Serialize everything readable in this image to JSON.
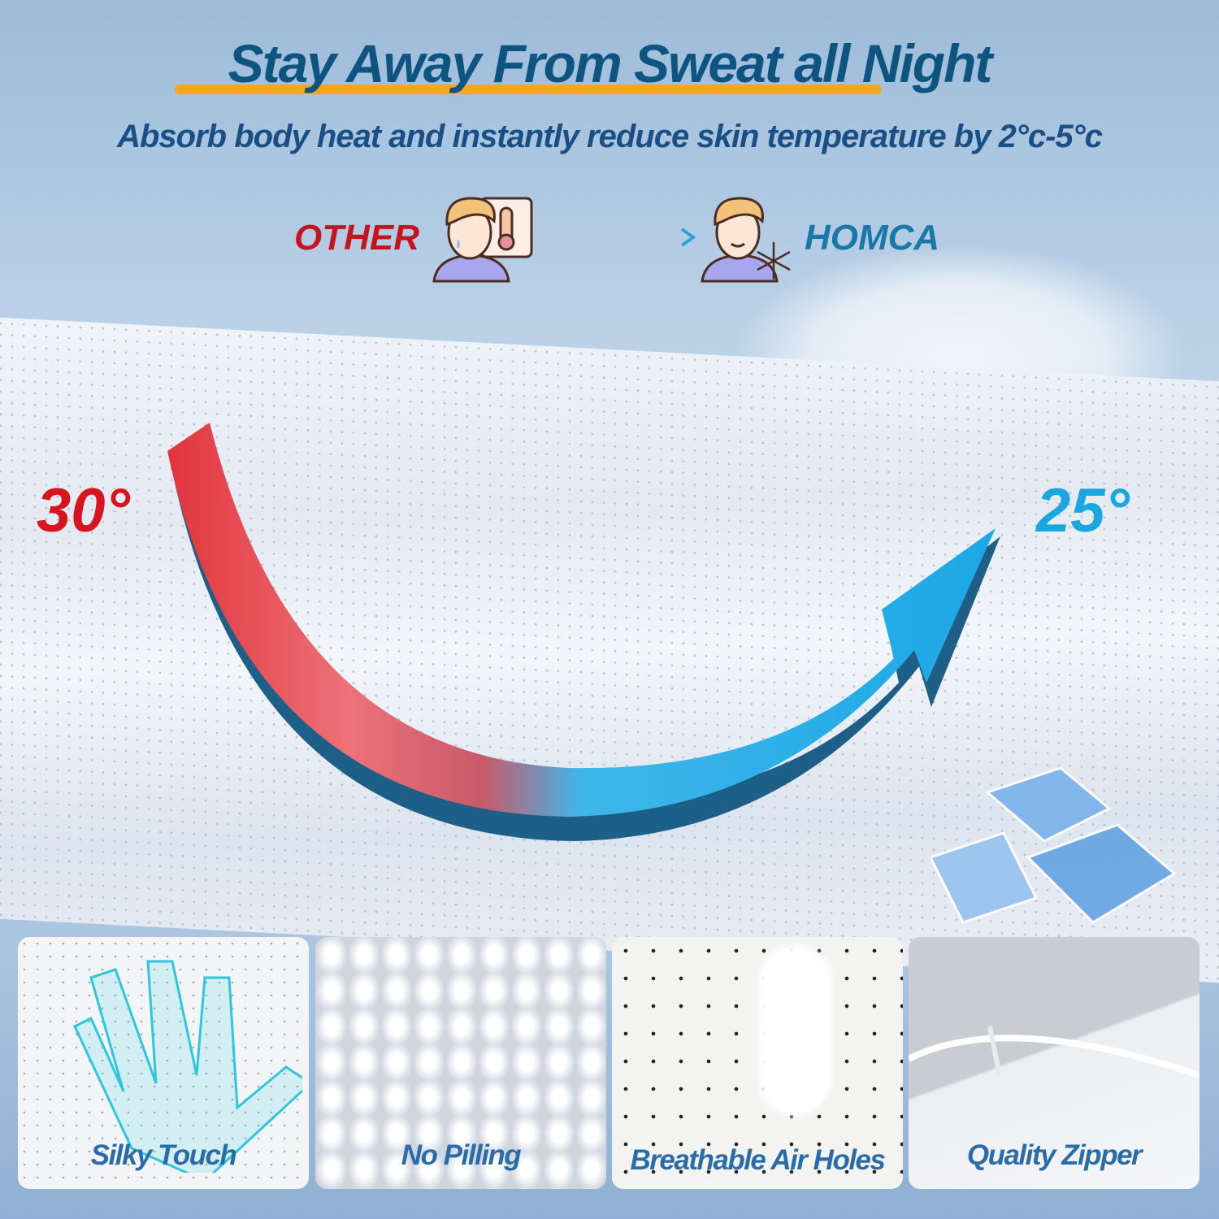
{
  "headline": {
    "title": "Stay Away From Sweat all Night",
    "subtitle": "Absorb body heat and instantly reduce skin temperature by 2°c-5°c"
  },
  "comparison": {
    "left_label": "OTHER",
    "right_label": "HOMCA",
    "left_icon": "hot-person-thermometer-icon",
    "right_icon": "cool-person-snowflake-icon",
    "arrow_icon": "arrow-right-icon"
  },
  "temperatures": {
    "before": "30°",
    "after": "25°"
  },
  "colors": {
    "title": "#0d5580",
    "accent_underline": "#f5a524",
    "hot": "#d8151f",
    "cool": "#1aa7e0",
    "feature_text": "#2a6ca8"
  },
  "features": [
    {
      "label": "Silky Touch"
    },
    {
      "label": "No Pilling"
    },
    {
      "label": "Breathable Air Holes"
    },
    {
      "label": "Quality Zipper"
    }
  ]
}
